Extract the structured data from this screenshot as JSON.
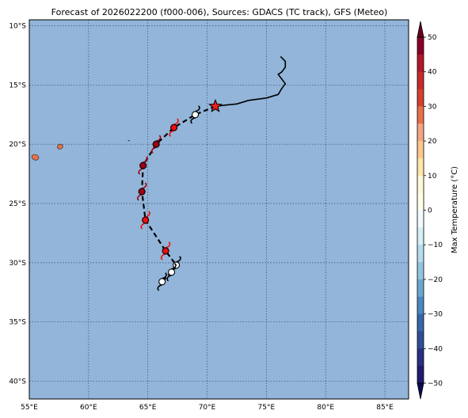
{
  "title": "Forecast of 2026022200 (f000-006), Sources: GDACS (TC track), GFS (Meteo)",
  "map": {
    "lon_range": [
      55,
      87
    ],
    "lat_range": [
      -41.5,
      -9.5
    ],
    "ocean_color": "#92b5d9",
    "grid": "dotted",
    "lon_ticks": [
      {
        "value": 55,
        "label": "55°E"
      },
      {
        "value": 60,
        "label": "60°E"
      },
      {
        "value": 65,
        "label": "65°E"
      },
      {
        "value": 70,
        "label": "70°E"
      },
      {
        "value": 75,
        "label": "75°E"
      },
      {
        "value": 80,
        "label": "80°E"
      },
      {
        "value": 85,
        "label": "85°E"
      }
    ],
    "lat_ticks": [
      {
        "value": -10,
        "label": "10°S"
      },
      {
        "value": -15,
        "label": "15°S"
      },
      {
        "value": -20,
        "label": "20°S"
      },
      {
        "value": -25,
        "label": "25°S"
      },
      {
        "value": -30,
        "label": "30°S"
      },
      {
        "value": -35,
        "label": "35°S"
      },
      {
        "value": -40,
        "label": "40°S"
      }
    ]
  },
  "past_track": [
    [
      76.2,
      -12.6
    ],
    [
      76.6,
      -13.0
    ],
    [
      76.6,
      -13.5
    ],
    [
      76.3,
      -13.9
    ],
    [
      76.0,
      -14.1
    ],
    [
      76.6,
      -14.9
    ],
    [
      76.3,
      -15.3
    ],
    [
      76.0,
      -15.8
    ],
    [
      75.0,
      -16.1
    ],
    [
      73.5,
      -16.3
    ],
    [
      72.5,
      -16.6
    ],
    [
      71.5,
      -16.7
    ],
    [
      70.7,
      -16.8
    ]
  ],
  "current_position": {
    "lon": 70.7,
    "lat": -16.8,
    "color": "#e8201c"
  },
  "forecast_track": [
    [
      70.7,
      -16.8
    ],
    [
      69.0,
      -17.5
    ],
    [
      67.2,
      -18.6
    ],
    [
      65.7,
      -20.0
    ],
    [
      64.6,
      -21.8
    ],
    [
      64.5,
      -24.0
    ],
    [
      64.8,
      -26.4
    ],
    [
      66.5,
      -29.0
    ],
    [
      67.4,
      -30.2
    ],
    [
      67.0,
      -30.8
    ],
    [
      66.2,
      -31.6
    ]
  ],
  "storm_symbols": [
    {
      "lon": 69.0,
      "lat": -17.5,
      "color": "#ffffff"
    },
    {
      "lon": 67.2,
      "lat": -18.6,
      "color": "#ee0d0d"
    },
    {
      "lon": 65.7,
      "lat": -20.0,
      "color": "#a00018"
    },
    {
      "lon": 64.6,
      "lat": -21.8,
      "color": "#a00018"
    },
    {
      "lon": 64.5,
      "lat": -24.0,
      "color": "#a00018"
    },
    {
      "lon": 64.8,
      "lat": -26.4,
      "color": "#ee0d0d"
    },
    {
      "lon": 66.5,
      "lat": -29.0,
      "color": "#ee0d0d"
    },
    {
      "lon": 67.4,
      "lat": -30.2,
      "color": "#ffffff"
    },
    {
      "lon": 67.0,
      "lat": -30.8,
      "color": "#ffffff"
    },
    {
      "lon": 66.2,
      "lat": -31.6,
      "color": "#ffffff"
    }
  ],
  "islands": [
    {
      "name": "",
      "lon": 55.5,
      "lat": -21.1,
      "color": "#e8704a"
    },
    {
      "name": "",
      "lon": 57.6,
      "lat": -20.2,
      "color": "#e8704a"
    },
    {
      "name": "",
      "lon": 63.4,
      "lat": -19.7,
      "color": "#1a3a6a"
    }
  ],
  "colorbar": {
    "label": "Max Temperature (°C)",
    "min": -50,
    "max": 50,
    "ticks": [
      {
        "value": 50,
        "label": "50"
      },
      {
        "value": 40,
        "label": "40"
      },
      {
        "value": 30,
        "label": "30"
      },
      {
        "value": 20,
        "label": "20"
      },
      {
        "value": 10,
        "label": "10"
      },
      {
        "value": 0,
        "label": "0"
      },
      {
        "value": -10,
        "label": "−10"
      },
      {
        "value": -20,
        "label": "−20"
      },
      {
        "value": -30,
        "label": "−30"
      },
      {
        "value": -40,
        "label": "−40"
      },
      {
        "value": -50,
        "label": "−50"
      }
    ],
    "bands": [
      {
        "from": 45,
        "to": 50,
        "color": "#8a0026"
      },
      {
        "from": 40,
        "to": 45,
        "color": "#b2182b"
      },
      {
        "from": 35,
        "to": 40,
        "color": "#c92a2a"
      },
      {
        "from": 30,
        "to": 35,
        "color": "#d6402e"
      },
      {
        "from": 25,
        "to": 30,
        "color": "#e8704a"
      },
      {
        "from": 20,
        "to": 25,
        "color": "#f4a582"
      },
      {
        "from": 15,
        "to": 20,
        "color": "#fdc88e"
      },
      {
        "from": 10,
        "to": 15,
        "color": "#fee5a8"
      },
      {
        "from": 5,
        "to": 10,
        "color": "#fff8d6"
      },
      {
        "from": 0,
        "to": 5,
        "color": "#ffffe8"
      },
      {
        "from": -5,
        "to": 0,
        "color": "#f1fbfd"
      },
      {
        "from": -10,
        "to": -5,
        "color": "#d6eef5"
      },
      {
        "from": -15,
        "to": -10,
        "color": "#b5dcec"
      },
      {
        "from": -20,
        "to": -15,
        "color": "#92c5de"
      },
      {
        "from": -25,
        "to": -20,
        "color": "#6aa7cf"
      },
      {
        "from": -30,
        "to": -25,
        "color": "#4b88c0"
      },
      {
        "from": -35,
        "to": -30,
        "color": "#3667aa"
      },
      {
        "from": -40,
        "to": -35,
        "color": "#2f4c97"
      },
      {
        "from": -45,
        "to": -40,
        "color": "#2a2f86"
      },
      {
        "from": -50,
        "to": -45,
        "color": "#231a70"
      }
    ],
    "extend_max_color": "#67001f",
    "extend_min_color": "#0d0a5a"
  }
}
